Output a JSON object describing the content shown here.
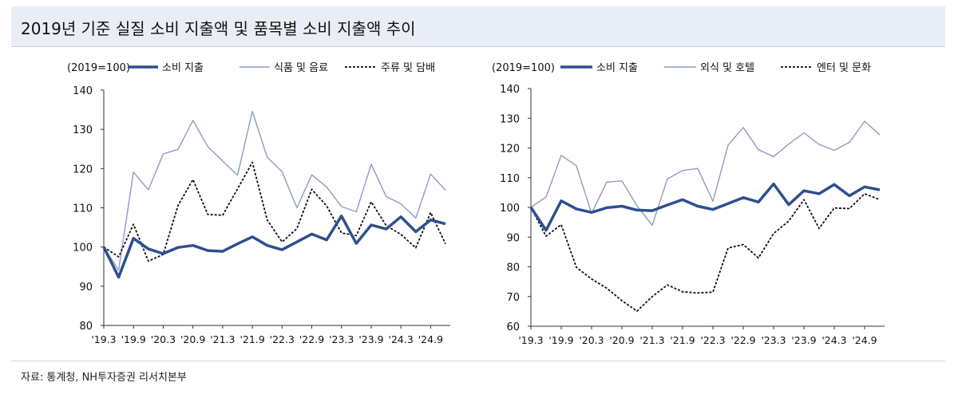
{
  "header": {
    "title": "2019년 기준 실질 소비 지출액 및 품목별 소비 지출액 추이"
  },
  "footer": {
    "source": "자료: 통계청, NH투자증권 리서치본부"
  },
  "chart_data": [
    {
      "type": "line",
      "unit_label": "(2019=100)",
      "ylim": [
        80,
        140
      ],
      "yticks": [
        80,
        90,
        100,
        110,
        120,
        130,
        140
      ],
      "x_tick_labels": [
        "'19.3",
        "'19.9",
        "'20.3",
        "'20.9",
        "'21.3",
        "'21.9",
        "'22.3",
        "'22.9",
        "'23.3",
        "'23.9",
        "'24.3",
        "'24.9"
      ],
      "series": [
        {
          "name": "소비 지출",
          "style": "thick",
          "color": "#2f4f8f",
          "values": [
            100,
            92.3,
            102.2,
            99.5,
            98.3,
            99.9,
            100.4,
            99.1,
            98.9,
            100.8,
            102.6,
            100.4,
            99.3,
            101.3,
            103.3,
            101.8,
            107.9,
            100.9,
            105.6,
            104.6,
            107.7,
            103.9,
            106.9,
            105.9
          ]
        },
        {
          "name": "식품 및 음료",
          "style": "thin",
          "color": "#8d9cbf",
          "values": [
            100,
            94.1,
            119.1,
            114.6,
            123.7,
            124.9,
            132.3,
            125.6,
            121.9,
            118.3,
            134.6,
            122.9,
            119.2,
            110.0,
            118.4,
            115.3,
            110.3,
            109.0,
            121.1,
            112.9,
            111.0,
            107.4,
            118.6,
            114.5
          ]
        },
        {
          "name": "주류 및 담배",
          "style": "dashed",
          "color": "#111111",
          "values": [
            100,
            97.5,
            105.8,
            96.4,
            98.1,
            110.6,
            117.2,
            108.3,
            108.1,
            114.8,
            121.6,
            106.9,
            101.3,
            104.7,
            114.7,
            110.5,
            103.6,
            102.9,
            111.5,
            105.5,
            103.2,
            99.8,
            108.8,
            100.8
          ]
        }
      ]
    },
    {
      "type": "line",
      "unit_label": "(2019=100)",
      "ylim": [
        60,
        140
      ],
      "yticks": [
        60,
        70,
        80,
        90,
        100,
        110,
        120,
        130,
        140
      ],
      "x_tick_labels": [
        "'19.3",
        "'19.9",
        "'20.3",
        "'20.9",
        "'21.3",
        "'21.9",
        "'22.3",
        "'22.9",
        "'23.3",
        "'23.9",
        "'24.3",
        "'24.9"
      ],
      "series": [
        {
          "name": "소비 지출",
          "style": "thick",
          "color": "#2f4f8f",
          "values": [
            100,
            92.3,
            102.2,
            99.5,
            98.3,
            99.9,
            100.4,
            99.1,
            98.9,
            100.8,
            102.6,
            100.4,
            99.3,
            101.3,
            103.3,
            101.8,
            107.9,
            100.9,
            105.6,
            104.6,
            107.7,
            103.9,
            106.9,
            105.9
          ]
        },
        {
          "name": "외식 및 호텔",
          "style": "thin",
          "color": "#8d9cbf",
          "values": [
            100,
            103.5,
            117.5,
            114.0,
            98.0,
            108.5,
            108.9,
            100.5,
            94.0,
            109.6,
            112.4,
            113.1,
            102.0,
            120.9,
            126.9,
            119.4,
            117.1,
            121.3,
            125.1,
            121.2,
            119.2,
            121.9,
            129.0,
            124.4
          ]
        },
        {
          "name": "엔터 및 문화",
          "style": "dashed",
          "color": "#111111",
          "values": [
            100,
            90.3,
            94.2,
            79.8,
            75.9,
            72.8,
            68.6,
            65.1,
            70.0,
            73.9,
            71.6,
            71.2,
            71.5,
            86.3,
            87.5,
            83.0,
            91.2,
            95.4,
            102.6,
            92.9,
            99.8,
            99.6,
            104.6,
            102.6
          ]
        }
      ]
    }
  ]
}
